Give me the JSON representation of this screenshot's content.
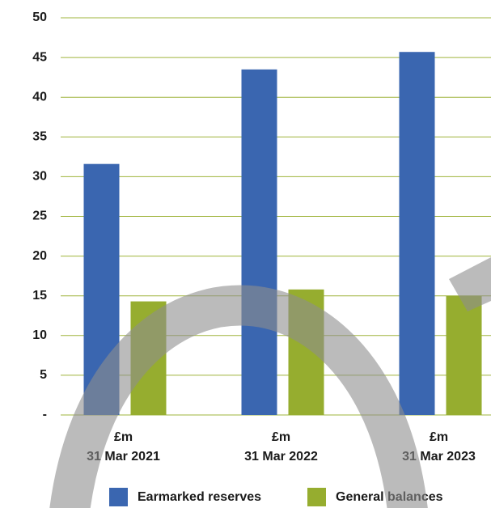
{
  "chart_data": {
    "type": "bar",
    "categories": [
      "31 Mar 2021",
      "31 Mar 2022",
      "31 Mar 2023"
    ],
    "category_unit": "£m",
    "series": [
      {
        "name": "Earmarked reserves",
        "color": "#3a66b0",
        "values": [
          31.6,
          43.5,
          45.7
        ]
      },
      {
        "name": "General balances",
        "color": "#96ad2f",
        "values": [
          14.3,
          15.8,
          15.0
        ]
      }
    ],
    "ylim": [
      0,
      50
    ],
    "yticks": [
      {
        "value": 0,
        "label": "-"
      },
      5,
      10,
      15,
      20,
      25,
      30,
      35,
      40,
      45,
      50
    ],
    "grid": true,
    "grid_color": "#9fb43c",
    "legend": "bottom"
  }
}
